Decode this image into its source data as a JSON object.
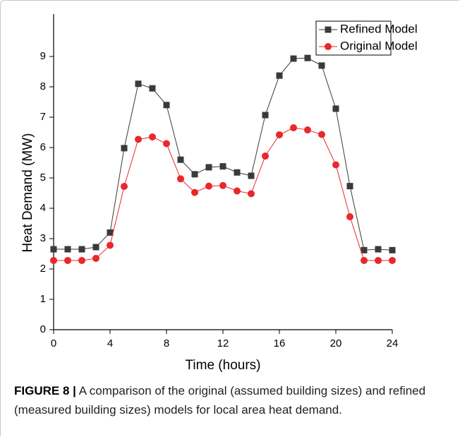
{
  "chart_data": {
    "type": "line",
    "x_label": "Time (hours)",
    "y_label": "Heat Demand (MW)",
    "caption_label": "FIGURE 8 |",
    "caption": "A comparison of the original (assumed building sizes) and refined (measured building sizes) models for local area heat demand.",
    "x": [
      0,
      1,
      2,
      3,
      4,
      5,
      6,
      7,
      8,
      9,
      10,
      11,
      12,
      13,
      14,
      15,
      16,
      17,
      18,
      19,
      20,
      21,
      22,
      23,
      24
    ],
    "series": [
      {
        "name": "Refined Model",
        "color": "#3a3a3a",
        "marker": "square",
        "values": [
          2.65,
          2.65,
          2.65,
          2.72,
          3.2,
          5.98,
          8.1,
          7.95,
          7.4,
          5.6,
          5.12,
          5.35,
          5.38,
          5.18,
          5.07,
          7.07,
          8.37,
          8.93,
          8.95,
          8.7,
          7.28,
          4.73,
          2.62,
          2.65,
          2.62
        ]
      },
      {
        "name": "Original Model",
        "color": "#e8282b",
        "marker": "circle",
        "values": [
          2.28,
          2.28,
          2.28,
          2.35,
          2.78,
          4.72,
          6.27,
          6.35,
          6.13,
          4.97,
          4.52,
          4.73,
          4.75,
          4.57,
          4.48,
          5.72,
          6.42,
          6.65,
          6.58,
          6.43,
          5.43,
          3.72,
          2.28,
          2.28,
          2.28
        ]
      }
    ],
    "xlim": [
      0,
      24
    ],
    "xticks": [
      0,
      4,
      8,
      12,
      16,
      20,
      24
    ],
    "ylim": [
      0,
      9
    ],
    "yticks": [
      0,
      1,
      2,
      3,
      4,
      5,
      6,
      7,
      8,
      9
    ],
    "legend": "top-right"
  }
}
